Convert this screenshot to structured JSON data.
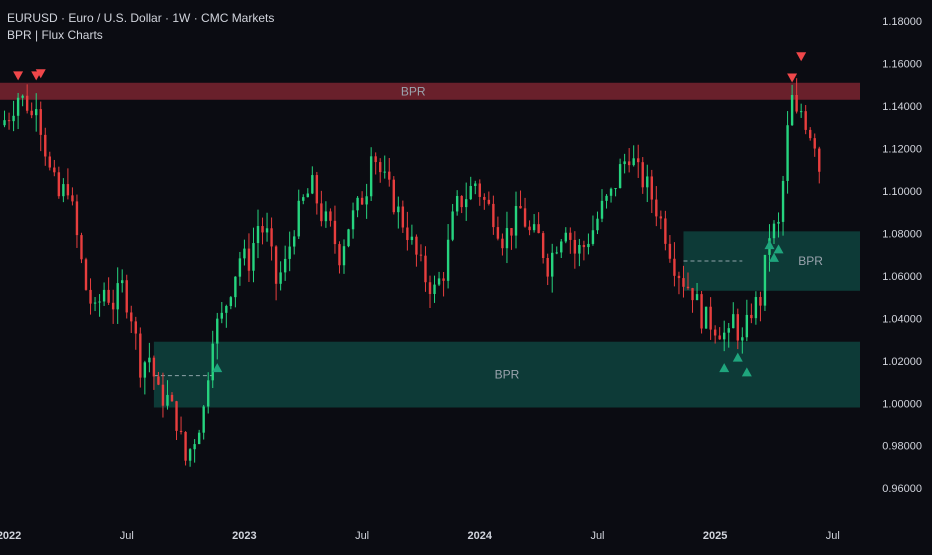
{
  "header": {
    "symbol_line": "EURUSD · Euro / U.S. Dollar · 1W · CMC Markets",
    "indicator_line": "BPR | Flux Charts"
  },
  "colors": {
    "background": "#0b0c12",
    "bull": "#26d47f",
    "bear": "#e83e3e",
    "bear_zone": "#7a2430",
    "bull_zone": "#0f4a44",
    "zone_label": "#9aa3ad",
    "axis_text": "#d1d4dc"
  },
  "chart_data": {
    "type": "candlestick",
    "title": "EURUSD · Euro / U.S. Dollar · 1W · CMC Markets",
    "y_ticks": [
      "1.18000",
      "1.16000",
      "1.14000",
      "1.12000",
      "1.10000",
      "1.08000",
      "1.06000",
      "1.04000",
      "1.02000",
      "1.00000",
      "0.98000",
      "0.96000"
    ],
    "ylim": [
      0.945,
      1.19
    ],
    "x_ticks": [
      {
        "label": "2022",
        "t": 0
      },
      {
        "label": "Jul",
        "t": 26
      },
      {
        "label": "2023",
        "t": 52
      },
      {
        "label": "Jul",
        "t": 78
      },
      {
        "label": "2024",
        "t": 104
      },
      {
        "label": "Jul",
        "t": 130
      },
      {
        "label": "2025",
        "t": 156
      },
      {
        "label": "Jul",
        "t": 182
      }
    ],
    "x_unit": "weeks since first week of 2022",
    "xlim": [
      -2,
      188
    ],
    "close_path": [
      [
        -2,
        1.131
      ],
      [
        0,
        1.136
      ],
      [
        2,
        1.145
      ],
      [
        4,
        1.141
      ],
      [
        5,
        1.135
      ],
      [
        6,
        1.144
      ],
      [
        7,
        1.131
      ],
      [
        9,
        1.109
      ],
      [
        11,
        1.097
      ],
      [
        13,
        1.103
      ],
      [
        15,
        1.078
      ],
      [
        17,
        1.054
      ],
      [
        19,
        1.042
      ],
      [
        21,
        1.054
      ],
      [
        23,
        1.047
      ],
      [
        25,
        1.055
      ],
      [
        27,
        1.042
      ],
      [
        29,
        1.018
      ],
      [
        31,
        1.022
      ],
      [
        33,
        1.004
      ],
      [
        35,
        1.002
      ],
      [
        37,
        0.992
      ],
      [
        39,
        0.973
      ],
      [
        41,
        0.984
      ],
      [
        43,
        0.997
      ],
      [
        45,
        1.034
      ],
      [
        47,
        1.04
      ],
      [
        49,
        1.055
      ],
      [
        51,
        1.069
      ],
      [
        53,
        1.067
      ],
      [
        55,
        1.084
      ],
      [
        57,
        1.079
      ],
      [
        59,
        1.057
      ],
      [
        61,
        1.065
      ],
      [
        63,
        1.084
      ],
      [
        65,
        1.095
      ],
      [
        67,
        1.102
      ],
      [
        69,
        1.089
      ],
      [
        71,
        1.082
      ],
      [
        73,
        1.07
      ],
      [
        75,
        1.084
      ],
      [
        77,
        1.092
      ],
      [
        79,
        1.102
      ],
      [
        80,
        1.122
      ],
      [
        82,
        1.109
      ],
      [
        84,
        1.1
      ],
      [
        86,
        1.09
      ],
      [
        88,
        1.081
      ],
      [
        90,
        1.069
      ],
      [
        92,
        1.059
      ],
      [
        94,
        1.053
      ],
      [
        96,
        1.062
      ],
      [
        98,
        1.086
      ],
      [
        99,
        1.093
      ],
      [
        101,
        1.098
      ],
      [
        103,
        1.104
      ],
      [
        105,
        1.095
      ],
      [
        107,
        1.089
      ],
      [
        109,
        1.078
      ],
      [
        111,
        1.083
      ],
      [
        113,
        1.091
      ],
      [
        115,
        1.08
      ],
      [
        117,
        1.078
      ],
      [
        119,
        1.065
      ],
      [
        121,
        1.076
      ],
      [
        123,
        1.085
      ],
      [
        125,
        1.071
      ],
      [
        127,
        1.074
      ],
      [
        129,
        1.082
      ],
      [
        131,
        1.092
      ],
      [
        133,
        1.098
      ],
      [
        135,
        1.11
      ],
      [
        137,
        1.118
      ],
      [
        139,
        1.108
      ],
      [
        141,
        1.102
      ],
      [
        143,
        1.092
      ],
      [
        145,
        1.08
      ],
      [
        147,
        1.066
      ],
      [
        149,
        1.058
      ],
      [
        151,
        1.053
      ],
      [
        153,
        1.041
      ],
      [
        155,
        1.038
      ],
      [
        157,
        1.035
      ],
      [
        159,
        1.03
      ],
      [
        160,
        1.04
      ],
      [
        162,
        1.028
      ],
      [
        164,
        1.044
      ],
      [
        166,
        1.049
      ],
      [
        168,
        1.08
      ],
      [
        170,
        1.083
      ],
      [
        171,
        1.104
      ],
      [
        172,
        1.128
      ],
      [
        173,
        1.143
      ],
      [
        174,
        1.134
      ],
      [
        175,
        1.138
      ],
      [
        176,
        1.133
      ],
      [
        177,
        1.128
      ],
      [
        178,
        1.124
      ],
      [
        179,
        1.111
      ]
    ],
    "zones": [
      {
        "label": "BPR",
        "kind": "bearish",
        "t_start": -2,
        "t_end": 188,
        "top": 1.151,
        "bottom": 1.143
      },
      {
        "label": "BPR",
        "kind": "bullish",
        "t_start": 32,
        "t_end": 188,
        "top": 1.029,
        "bottom": 0.998,
        "mid": 1.013,
        "mid_t_end": 45
      },
      {
        "label": "BPR",
        "kind": "bullish",
        "t_start": 149,
        "t_end": 188,
        "top": 1.081,
        "bottom": 1.053,
        "mid": 1.067,
        "mid_t_end": 162
      }
    ],
    "signals": [
      {
        "type": "bear",
        "t": 2,
        "price": 1.154
      },
      {
        "type": "bear",
        "t": 6,
        "price": 1.154
      },
      {
        "type": "bear",
        "t": 7,
        "price": 1.155
      },
      {
        "type": "bear",
        "t": 173,
        "price": 1.153
      },
      {
        "type": "bear",
        "t": 175,
        "price": 1.163
      },
      {
        "type": "bull",
        "t": 46,
        "price": 1.017
      },
      {
        "type": "bull",
        "t": 158,
        "price": 1.017
      },
      {
        "type": "bull",
        "t": 161,
        "price": 1.022
      },
      {
        "type": "bull",
        "t": 163,
        "price": 1.015
      },
      {
        "type": "bull",
        "t": 168,
        "price": 1.075
      },
      {
        "type": "bull",
        "t": 169,
        "price": 1.069
      },
      {
        "type": "bull",
        "t": 170,
        "price": 1.073
      }
    ]
  }
}
